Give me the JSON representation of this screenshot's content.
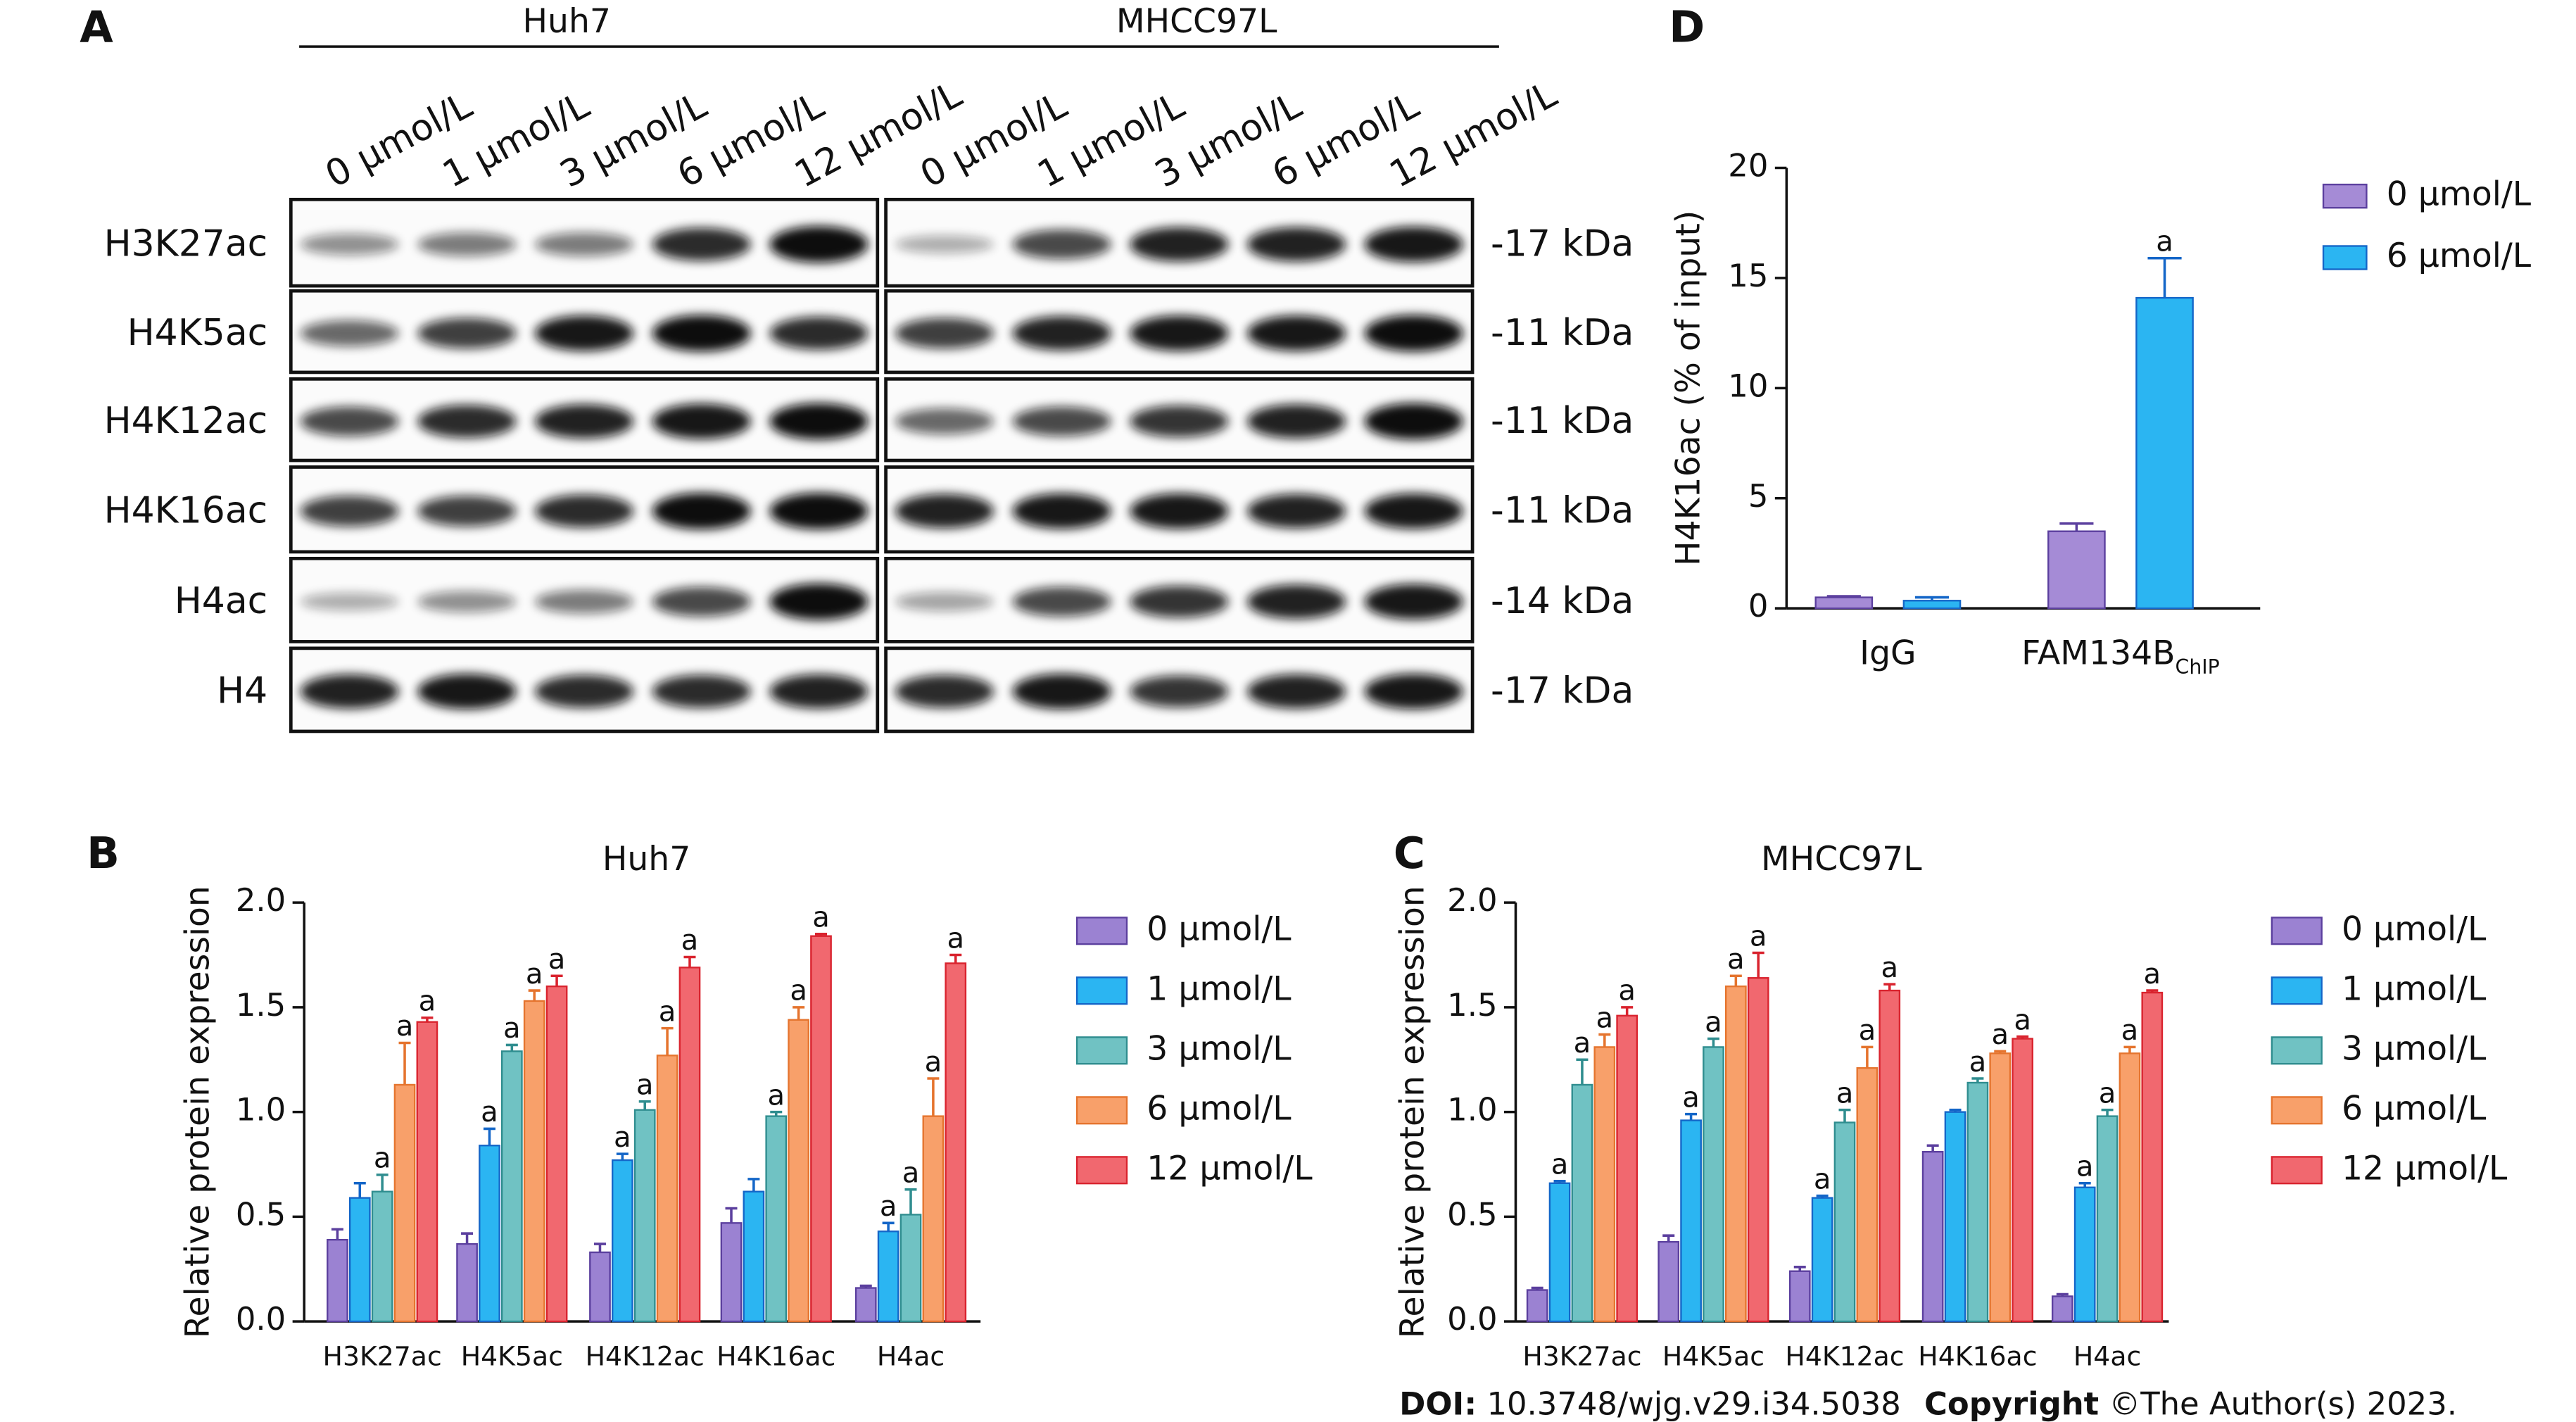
{
  "panel_labels": [
    "A",
    "B",
    "C",
    "D"
  ],
  "blot": {
    "cell_lines": [
      {
        "name": "Huh7",
        "lanes": [
          "0 μmol/L",
          "1 μmol/L",
          "3 μmol/L",
          "6 μmol/L",
          "12 μmol/L"
        ]
      },
      {
        "name": "MHCC97L",
        "lanes": [
          "0 μmol/L",
          "1 μmol/L",
          "3 μmol/L",
          "6 μmol/L",
          "12 μmol/L"
        ]
      }
    ],
    "rows": [
      {
        "label": "H3K27ac",
        "size": "-17 kDa"
      },
      {
        "label": "H4K5ac",
        "size": "-11 kDa"
      },
      {
        "label": "H4K12ac",
        "size": "-11 kDa"
      },
      {
        "label": "H4K16ac",
        "size": "-11 kDa"
      },
      {
        "label": "H4ac",
        "size": "-14 kDa"
      },
      {
        "label": "H4",
        "size": "-17 kDa"
      }
    ]
  },
  "chart_data": [
    {
      "type": "bar",
      "title": "Huh7",
      "y_label": "Relative protein expression",
      "categories": [
        "H3K27ac",
        "H4K5ac",
        "H4K12ac",
        "H4K16ac",
        "H4ac"
      ],
      "ylim": [
        0,
        2.0
      ],
      "yticks": [
        {
          "value": 0,
          "label": "0.0"
        },
        0.5,
        {
          "value": 1.0,
          "label": "1.0"
        },
        1.5,
        {
          "value": 2.0,
          "label": "2.0"
        }
      ],
      "series": [
        {
          "name": "0 μmol/L",
          "color": "#9b82d2",
          "edge": "#5b3f9e",
          "values": [
            0.39,
            0.37,
            0.33,
            0.47,
            0.16
          ],
          "errors": [
            0.05,
            0.05,
            0.04,
            0.07,
            0.01
          ],
          "sig": [
            null,
            null,
            null,
            null,
            null
          ]
        },
        {
          "name": "1 μmol/L",
          "color": "#2bb5f2",
          "edge": "#1466c8",
          "values": [
            0.59,
            0.84,
            0.77,
            0.62,
            0.43
          ],
          "errors": [
            0.07,
            0.08,
            0.03,
            0.06,
            0.04
          ],
          "sig": [
            null,
            "a",
            "a",
            null,
            "a"
          ]
        },
        {
          "name": "3 μmol/L",
          "color": "#70c2c3",
          "edge": "#2f8d8f",
          "values": [
            0.62,
            1.29,
            1.01,
            0.98,
            0.51
          ],
          "errors": [
            0.08,
            0.03,
            0.04,
            0.02,
            0.12
          ],
          "sig": [
            "a",
            "a",
            "a",
            "a",
            "a"
          ]
        },
        {
          "name": "6 μmol/L",
          "color": "#f8a06a",
          "edge": "#e5742e",
          "values": [
            1.13,
            1.53,
            1.27,
            1.44,
            0.98
          ],
          "errors": [
            0.2,
            0.05,
            0.13,
            0.06,
            0.18
          ],
          "sig": [
            "a",
            "a",
            "a",
            "a",
            "a"
          ]
        },
        {
          "name": "12 μmol/L",
          "color": "#f1686f",
          "edge": "#d9232e",
          "values": [
            1.43,
            1.6,
            1.69,
            1.84,
            1.71
          ],
          "errors": [
            0.02,
            0.05,
            0.05,
            0.01,
            0.04
          ],
          "sig": [
            "a",
            "a",
            "a",
            "a",
            "a"
          ]
        }
      ]
    },
    {
      "type": "bar",
      "title": "MHCC97L",
      "y_label": "Relative protein expression",
      "categories": [
        "H3K27ac",
        "H4K5ac",
        "H4K12ac",
        "H4K16ac",
        "H4ac"
      ],
      "ylim": [
        0,
        2.0
      ],
      "yticks": [
        {
          "value": 0,
          "label": "0.0"
        },
        0.5,
        {
          "value": 1.0,
          "label": "1.0"
        },
        1.5,
        {
          "value": 2.0,
          "label": "2.0"
        }
      ],
      "series": [
        {
          "name": "0 μmol/L",
          "color": "#9b82d2",
          "edge": "#5b3f9e",
          "values": [
            0.15,
            0.38,
            0.24,
            0.81,
            0.12
          ],
          "errors": [
            0.01,
            0.03,
            0.02,
            0.03,
            0.01
          ],
          "sig": [
            null,
            null,
            null,
            null,
            null
          ]
        },
        {
          "name": "1 μmol/L",
          "color": "#2bb5f2",
          "edge": "#1466c8",
          "values": [
            0.66,
            0.96,
            0.59,
            1.0,
            0.64
          ],
          "errors": [
            0.01,
            0.03,
            0.01,
            0.01,
            0.02
          ],
          "sig": [
            "a",
            "a",
            "a",
            null,
            "a"
          ]
        },
        {
          "name": "3 μmol/L",
          "color": "#70c2c3",
          "edge": "#2f8d8f",
          "values": [
            1.13,
            1.31,
            0.95,
            1.14,
            0.98
          ],
          "errors": [
            0.12,
            0.04,
            0.06,
            0.02,
            0.03
          ],
          "sig": [
            "a",
            "a",
            "a",
            "a",
            "a"
          ]
        },
        {
          "name": "6 μmol/L",
          "color": "#f8a06a",
          "edge": "#e5742e",
          "values": [
            1.31,
            1.6,
            1.21,
            1.28,
            1.28
          ],
          "errors": [
            0.06,
            0.05,
            0.1,
            0.01,
            0.03
          ],
          "sig": [
            "a",
            "a",
            "a",
            "a",
            "a"
          ]
        },
        {
          "name": "12 μmol/L",
          "color": "#f1686f",
          "edge": "#d9232e",
          "values": [
            1.46,
            1.64,
            1.58,
            1.35,
            1.57
          ],
          "errors": [
            0.04,
            0.12,
            0.03,
            0.01,
            0.01
          ],
          "sig": [
            "a",
            "a",
            "a",
            "a",
            "a"
          ]
        }
      ]
    },
    {
      "type": "bar",
      "y_label": "H4K16ac (% of input)",
      "categories": [
        "IgG",
        "FAM134B"
      ],
      "category_subscripts": [
        null,
        "ChIP"
      ],
      "ylim": [
        0,
        20
      ],
      "yticks": [
        0,
        5,
        10,
        15,
        20
      ],
      "series": [
        {
          "name": "0 μmol/L",
          "color": "#a58bd6",
          "edge": "#5b3f9e",
          "values": [
            0.5,
            3.5
          ],
          "errors": [
            0.05,
            0.35
          ],
          "sig": [
            null,
            null
          ]
        },
        {
          "name": "6 μmol/L",
          "color": "#2bb5f2",
          "edge": "#1466c8",
          "values": [
            0.35,
            14.1
          ],
          "errors": [
            0.15,
            1.8
          ],
          "sig": [
            null,
            "a"
          ]
        }
      ]
    }
  ],
  "footer": {
    "doi_label": "DOI:",
    "doi": "10.3748/wjg.v29.i34.5038",
    "copyright_label": "Copyright",
    "copyright": "©The Author(s) 2023."
  }
}
